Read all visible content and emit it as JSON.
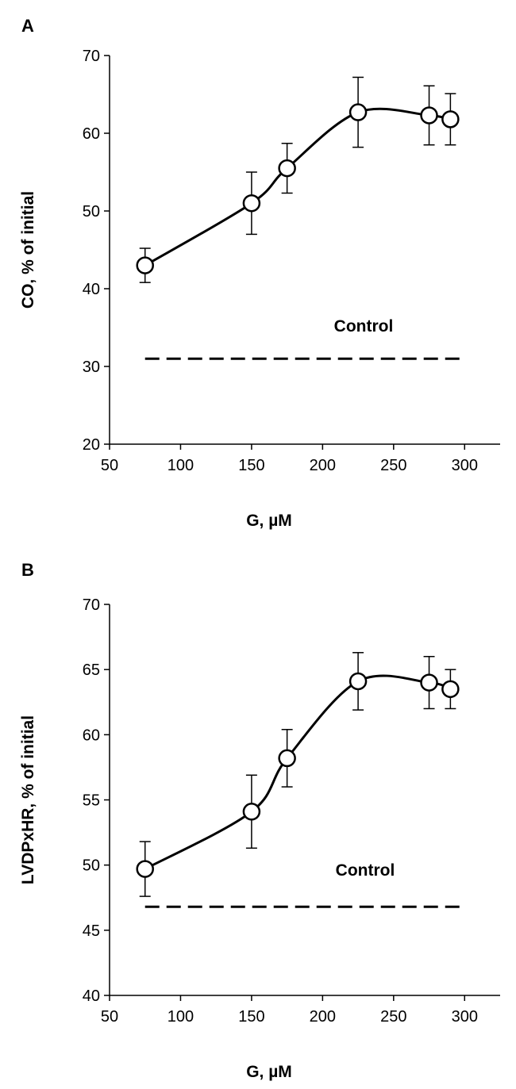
{
  "figure": {
    "panel_labels": [
      "A",
      "B"
    ]
  },
  "colors": {
    "line": "#000000",
    "marker_fill": "#ffffff",
    "background": "#ffffff"
  },
  "chart_data": [
    {
      "panel": "A",
      "type": "line",
      "title": "",
      "xlabel": "G, µM",
      "ylabel": "CO, % of initial",
      "xlim": [
        50,
        325
      ],
      "ylim": [
        20,
        70
      ],
      "xticks": [
        50,
        100,
        150,
        200,
        250,
        300
      ],
      "yticks": [
        20,
        30,
        40,
        50,
        60,
        70
      ],
      "grid": false,
      "series": [
        {
          "name": "G",
          "x": [
            75,
            150,
            175,
            225,
            275,
            290
          ],
          "y": [
            43,
            51,
            55.5,
            62.7,
            62.3,
            61.8
          ],
          "error": [
            2.2,
            4.0,
            3.2,
            4.5,
            3.8,
            3.3
          ]
        }
      ],
      "reference_line": {
        "label": "Control",
        "y": 31,
        "x_from": 75,
        "x_to": 300,
        "style": "dashed"
      }
    },
    {
      "panel": "B",
      "type": "line",
      "title": "",
      "xlabel": "G, µM",
      "ylabel": "LVDPxHR, % of initial",
      "xlim": [
        50,
        325
      ],
      "ylim": [
        40,
        70
      ],
      "xticks": [
        50,
        100,
        150,
        200,
        250,
        300
      ],
      "yticks": [
        40,
        45,
        50,
        55,
        60,
        65,
        70
      ],
      "grid": false,
      "series": [
        {
          "name": "G",
          "x": [
            75,
            150,
            175,
            225,
            275,
            290
          ],
          "y": [
            49.7,
            54.1,
            58.2,
            64.1,
            64.0,
            63.5
          ],
          "error": [
            2.1,
            2.8,
            2.2,
            2.2,
            2.0,
            1.5
          ]
        }
      ],
      "reference_line": {
        "label": "Control",
        "y": 46.8,
        "x_from": 75,
        "x_to": 300,
        "style": "dashed"
      }
    }
  ]
}
